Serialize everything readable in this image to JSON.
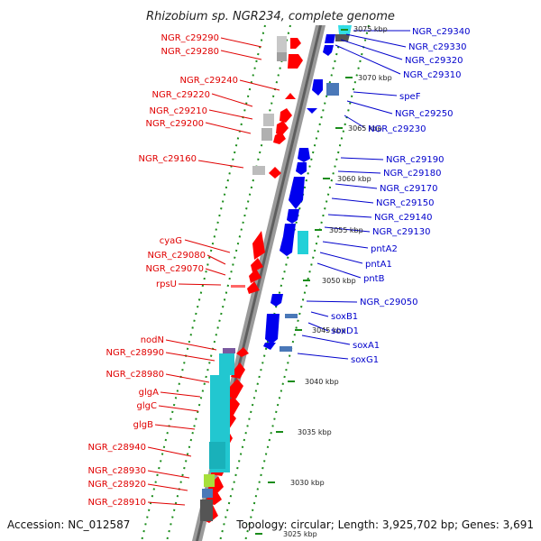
{
  "title": "Rhizobium sp. NGR234, complete genome",
  "accession_label": "Accession: NC_012587",
  "topology_label": "Topology: circular; Length: 3,925,702 bp; Genes: 3,691",
  "colors": {
    "forward_gene": "#ff0000",
    "reverse_gene": "#0000ee",
    "left_label": "#e00000",
    "right_label": "#0000cc",
    "rna_cyan": "#22d0d8",
    "pseudogene_gray": "#b8b8b8",
    "tick_green": "#1a8c1a",
    "backbone": "#777777"
  },
  "ruler_labels": [
    "3075 kbp",
    "3070 kbp",
    "3065 kbp",
    "3060 kbp",
    "3055 kbp",
    "3050 kbp",
    "3045 kbp",
    "3040 kbp",
    "3035 kbp",
    "3030 kbp",
    "3025 kbp"
  ],
  "left_gene_labels": [
    "NGR_c29290",
    "NGR_c29280",
    "NGR_c29240",
    "NGR_c29220",
    "NGR_c29210",
    "NGR_c29200",
    "NGR_c29160",
    "cyaG",
    "NGR_c29080",
    "NGR_c29070",
    "rpsU",
    "nodN",
    "NGR_c28990",
    "NGR_c28980",
    "glgA",
    "glgC",
    "glgB",
    "NGR_c28940",
    "NGR_c28930",
    "NGR_c28920",
    "NGR_c28910"
  ],
  "right_gene_labels": [
    "NGR_c29340",
    "NGR_c29330",
    "NGR_c29320",
    "NGR_c29310",
    "speF",
    "NGR_c29250",
    "NGR_c29230",
    "NGR_c29190",
    "NGR_c29180",
    "NGR_c29170",
    "NGR_c29150",
    "NGR_c29140",
    "NGR_c29130",
    "pntA2",
    "pntA1",
    "pntB",
    "NGR_c29050",
    "soxB1",
    "soxD1",
    "soxA1",
    "soxG1"
  ]
}
